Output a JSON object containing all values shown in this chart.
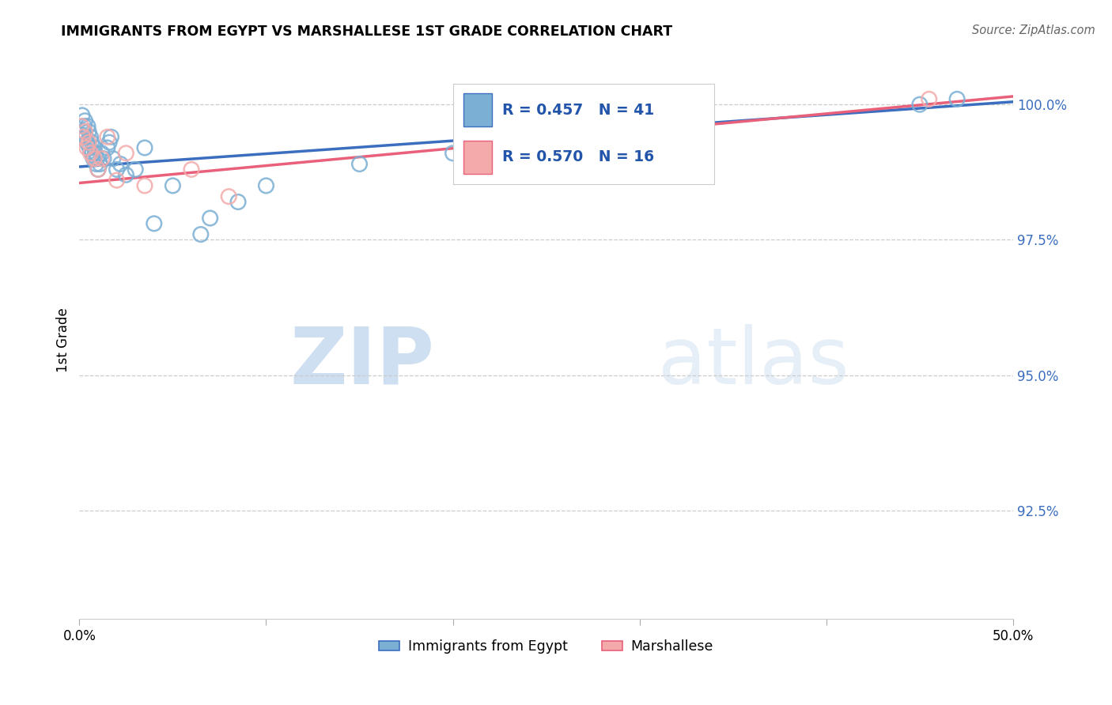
{
  "title": "IMMIGRANTS FROM EGYPT VS MARSHALLESE 1ST GRADE CORRELATION CHART",
  "source": "Source: ZipAtlas.com",
  "ylabel": "1st Grade",
  "xlim": [
    0.0,
    50.0
  ],
  "ylim": [
    90.5,
    100.8
  ],
  "yticks": [
    92.5,
    95.0,
    97.5,
    100.0
  ],
  "ytick_labels": [
    "92.5%",
    "95.0%",
    "97.5%",
    "100.0%"
  ],
  "r_egypt": 0.457,
  "n_egypt": 41,
  "r_marshallese": 0.57,
  "n_marshallese": 16,
  "egypt_color": "#7BAFD4",
  "marshallese_color": "#F4AAAA",
  "egypt_line_color": "#3B6EBF",
  "marshallese_line_color": "#E8607A",
  "legend_text_color": "#2255AA",
  "watermark_zip": "ZIP",
  "watermark_atlas": "atlas",
  "egypt_x": [
    0.15,
    0.2,
    0.25,
    0.3,
    0.35,
    0.4,
    0.45,
    0.5,
    0.55,
    0.6,
    0.65,
    0.7,
    0.75,
    0.8,
    0.85,
    0.9,
    0.95,
    1.0,
    1.1,
    1.2,
    1.3,
    1.5,
    1.6,
    1.7,
    1.8,
    2.0,
    2.2,
    2.5,
    3.0,
    3.5,
    4.0,
    5.0,
    6.5,
    7.0,
    8.5,
    10.0,
    15.0,
    20.0,
    25.0,
    45.0,
    47.0
  ],
  "egypt_y": [
    99.8,
    99.5,
    99.6,
    99.7,
    99.4,
    99.3,
    99.6,
    99.5,
    99.2,
    99.4,
    99.3,
    99.1,
    99.0,
    99.2,
    99.1,
    98.9,
    99.0,
    98.8,
    98.9,
    99.1,
    99.0,
    99.2,
    99.3,
    99.4,
    99.0,
    98.8,
    98.9,
    98.7,
    98.8,
    99.2,
    97.8,
    98.5,
    97.6,
    97.9,
    98.2,
    98.5,
    98.9,
    99.1,
    99.3,
    100.0,
    100.1
  ],
  "marshallese_x": [
    0.1,
    0.2,
    0.3,
    0.4,
    0.5,
    0.6,
    0.8,
    1.0,
    1.2,
    1.5,
    2.0,
    2.5,
    3.5,
    6.0,
    8.0,
    45.5
  ],
  "marshallese_y": [
    99.6,
    99.4,
    99.5,
    99.2,
    99.3,
    99.1,
    99.0,
    98.8,
    99.0,
    99.4,
    98.6,
    99.1,
    98.5,
    98.8,
    98.3,
    100.1
  ],
  "egypt_line_x": [
    0.0,
    50.0
  ],
  "egypt_line_y": [
    98.85,
    100.05
  ],
  "marsh_line_x": [
    0.0,
    50.0
  ],
  "marsh_line_y": [
    98.55,
    100.15
  ]
}
